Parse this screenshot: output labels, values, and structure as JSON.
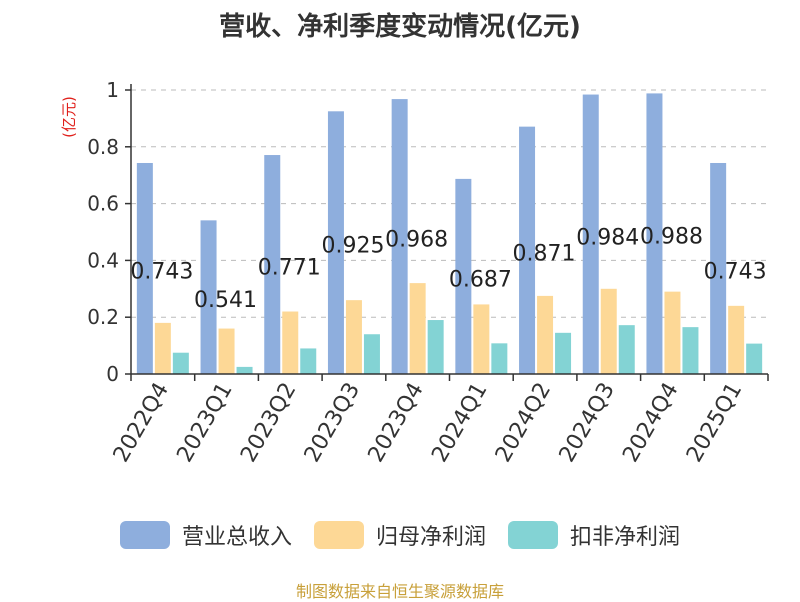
{
  "chart_data": {
    "type": "bar",
    "title": "营收、净利季度变动情况(亿元)",
    "ylabel": "(亿元)",
    "xlabel": "",
    "ylim": [
      0,
      1
    ],
    "yticks": [
      "0",
      "0.2",
      "0.4",
      "0.6",
      "0.8",
      "1"
    ],
    "grid": true,
    "legend_position": "bottom",
    "categories": [
      "2022Q4",
      "2023Q1",
      "2023Q2",
      "2023Q3",
      "2023Q4",
      "2024Q1",
      "2024Q2",
      "2024Q3",
      "2024Q4",
      "2025Q1"
    ],
    "series": [
      {
        "name": "营业总收入",
        "color": "#8eaedd",
        "values": [
          0.743,
          0.541,
          0.771,
          0.925,
          0.968,
          0.687,
          0.871,
          0.984,
          0.988,
          0.743
        ],
        "data_labels": [
          "0.743",
          "0.541",
          "0.771",
          "0.925",
          "0.968",
          "0.687",
          "0.871",
          "0.984",
          "0.988",
          "0.743"
        ]
      },
      {
        "name": "归母净利润",
        "color": "#fdd896",
        "values": [
          0.18,
          0.16,
          0.22,
          0.26,
          0.32,
          0.245,
          0.275,
          0.3,
          0.29,
          0.24
        ]
      },
      {
        "name": "扣非净利润",
        "color": "#83d3d4",
        "values": [
          0.075,
          0.025,
          0.09,
          0.14,
          0.19,
          0.108,
          0.145,
          0.172,
          0.165,
          0.107
        ]
      }
    ]
  },
  "source_note": "制图数据来自恒生聚源数据库"
}
